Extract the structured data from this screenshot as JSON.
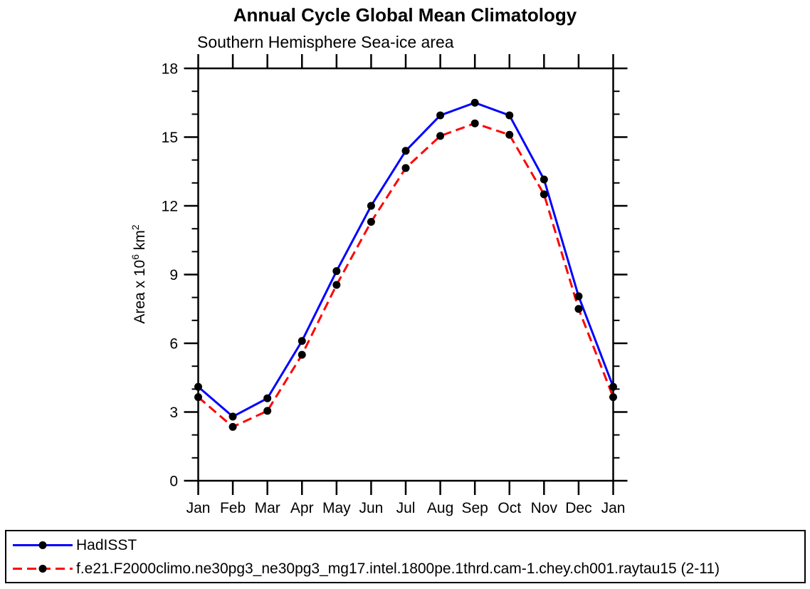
{
  "chart_data": {
    "type": "line",
    "title": "Annual Cycle Global Mean Climatology",
    "subtitle": "Southern Hemisphere Sea-ice area",
    "ylabel": "Area x 10^6 km^2",
    "xlabel": "",
    "x_categories": [
      "Jan",
      "Feb",
      "Mar",
      "Apr",
      "May",
      "Jun",
      "Jul",
      "Aug",
      "Sep",
      "Oct",
      "Nov",
      "Dec",
      "Jan"
    ],
    "ylim": [
      0,
      18
    ],
    "y_major_step": 3,
    "y_minor_step": 1,
    "y_major_tick_labels": [
      "0",
      "3",
      "6",
      "9",
      "12",
      "15",
      "18"
    ],
    "grid": false,
    "frame": true,
    "axis_color": "#000000",
    "legend_position": "bottom-box",
    "series": [
      {
        "name": "HadISST",
        "color": "#0000ff",
        "line_style": "solid",
        "marker": "filled-circle",
        "marker_color": "#000000",
        "values": [
          4.1,
          2.8,
          3.6,
          6.1,
          9.15,
          12.0,
          14.4,
          15.95,
          16.5,
          15.95,
          13.15,
          8.05,
          4.1
        ]
      },
      {
        "name": "f.e21.F2000climo.ne30pg3_ne30pg3_mg17.intel.1800pe.1thrd.cam-1.chey.ch001.raytau15 (2-11)",
        "color": "#ff0000",
        "line_style": "dashed",
        "marker": "filled-circle",
        "marker_color": "#000000",
        "values": [
          3.65,
          2.35,
          3.05,
          5.5,
          8.55,
          11.3,
          13.65,
          15.05,
          15.6,
          15.1,
          12.5,
          7.5,
          3.65
        ]
      }
    ]
  }
}
